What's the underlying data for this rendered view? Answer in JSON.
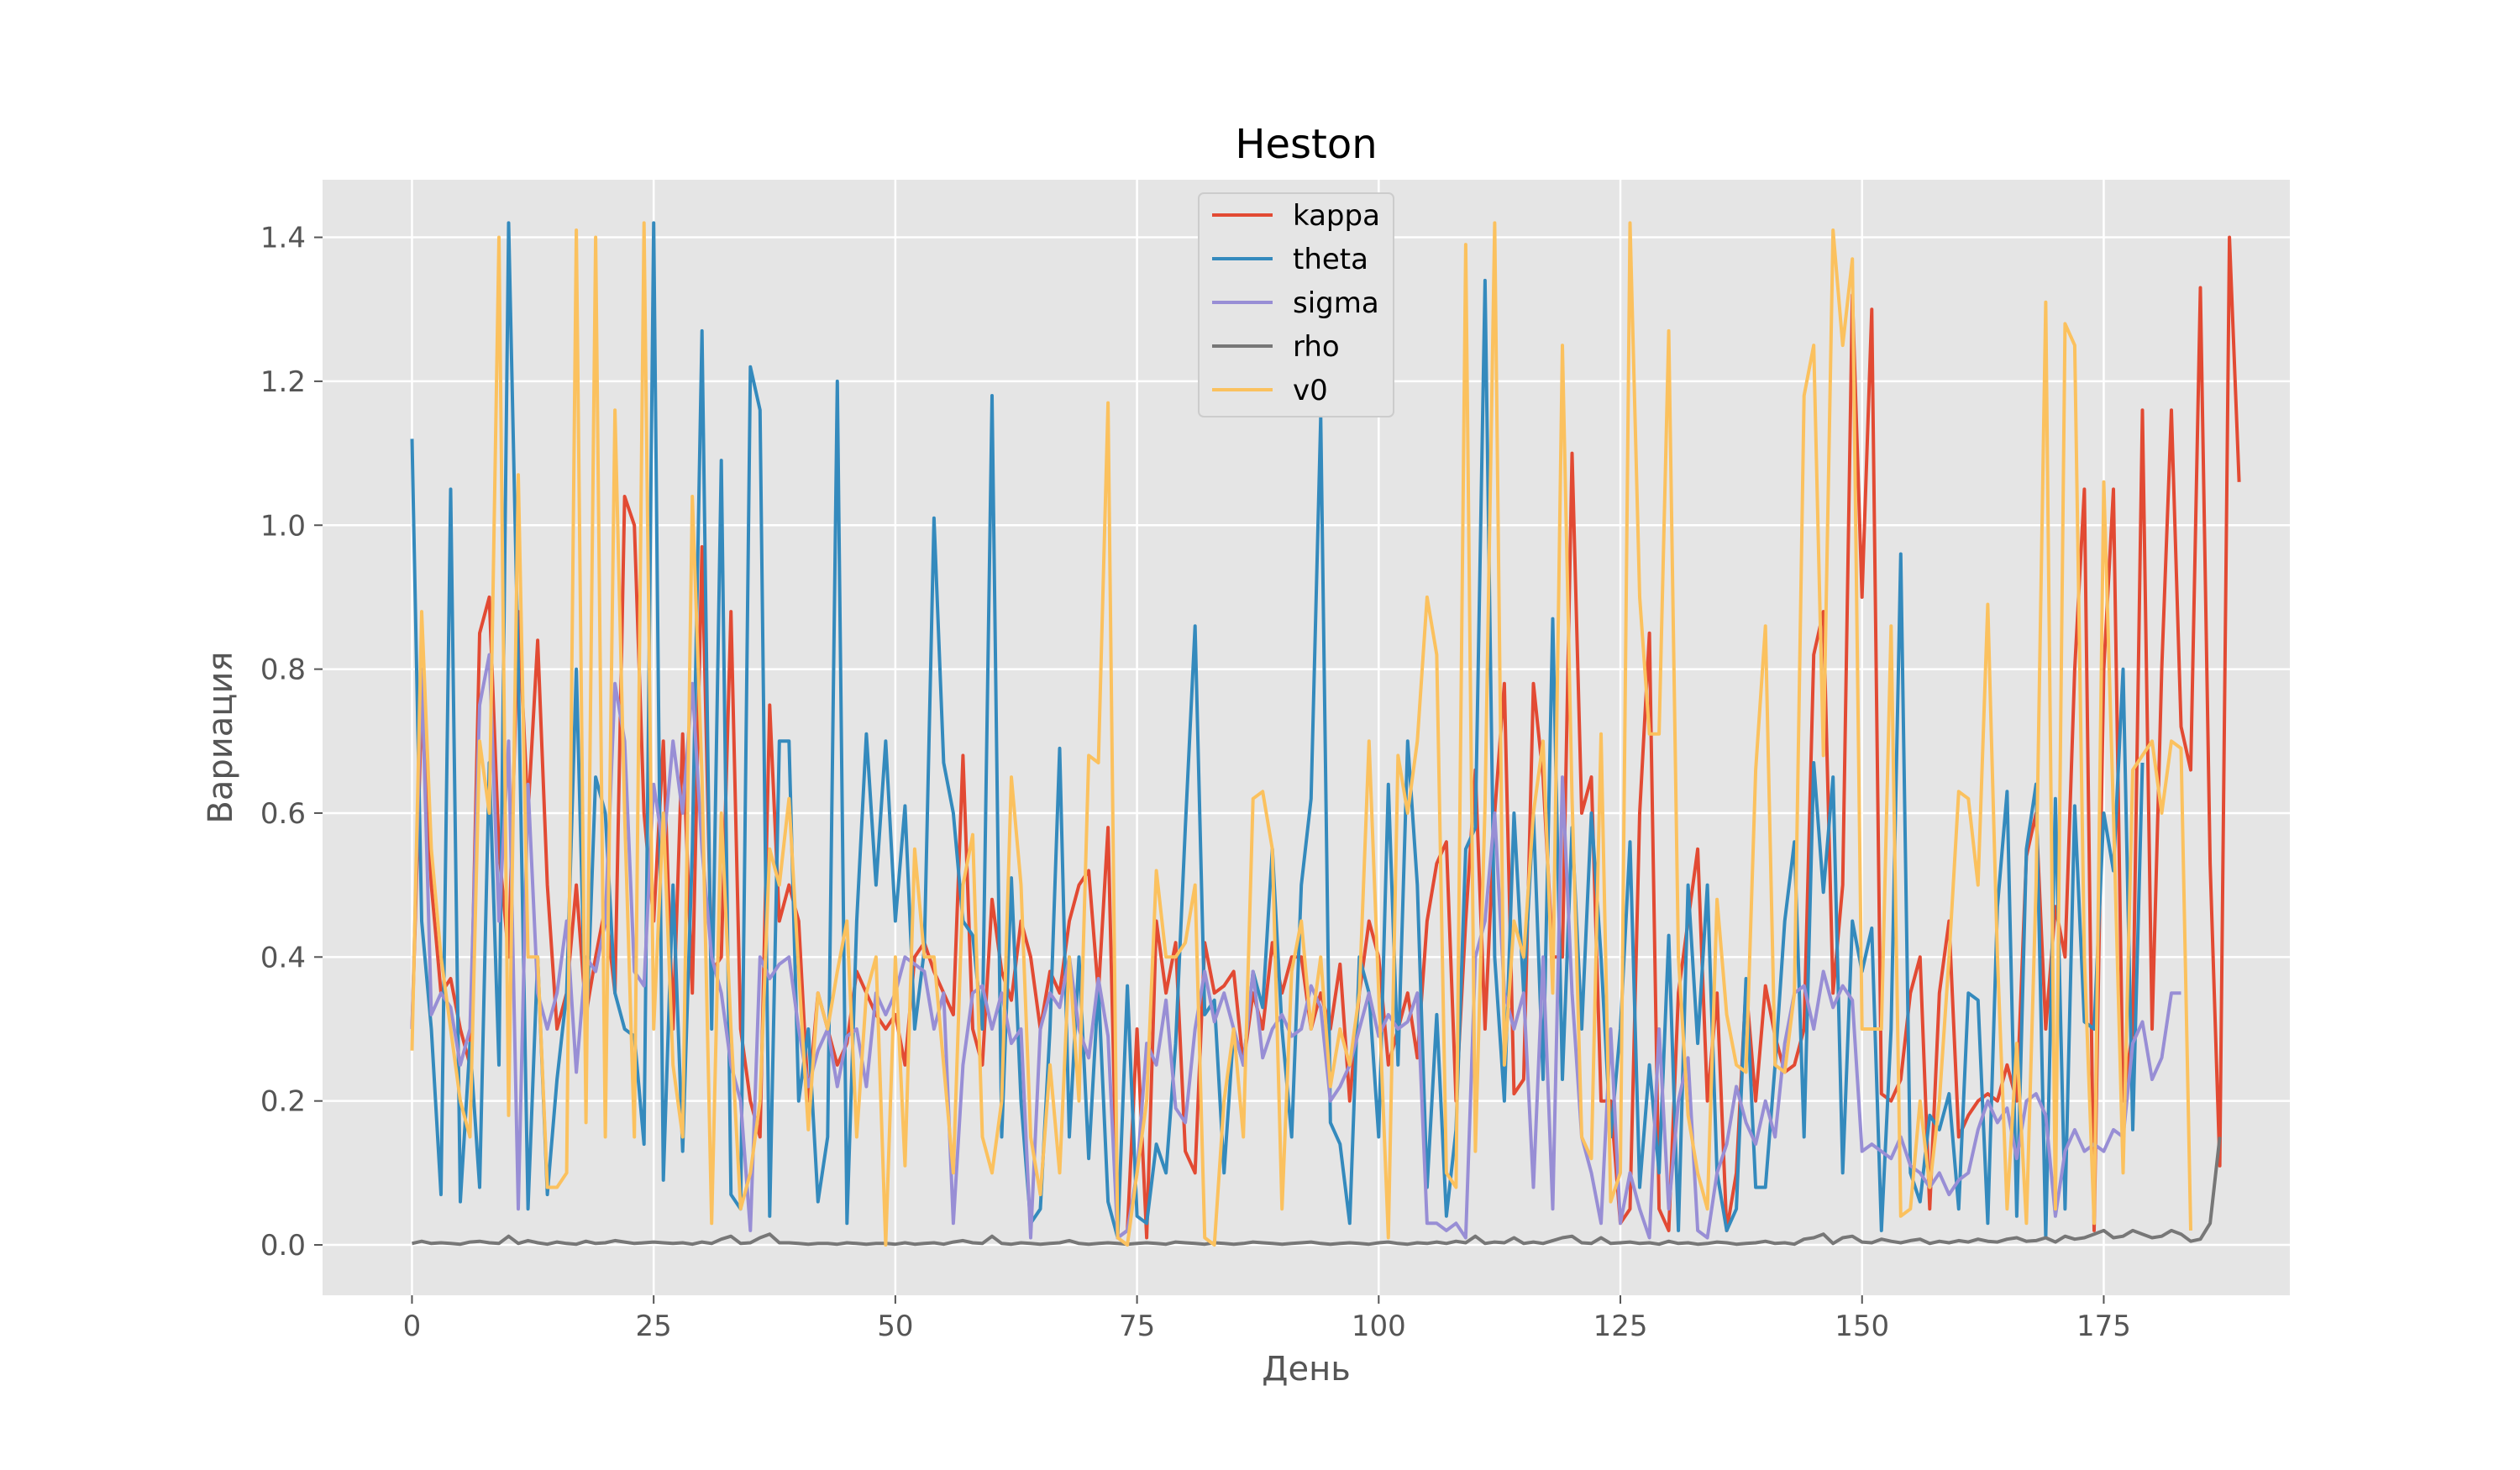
{
  "chart_data": {
    "type": "line",
    "title": "Heston",
    "xlabel": "День",
    "ylabel": "Вариация",
    "xlim": [
      -9.25,
      194.25
    ],
    "ylim": [
      -0.07,
      1.48
    ],
    "xticks": [
      0,
      25,
      50,
      75,
      100,
      125,
      150,
      175
    ],
    "yticks": [
      0.0,
      0.2,
      0.4,
      0.6,
      0.8,
      1.0,
      1.2,
      1.4
    ],
    "grid": true,
    "legend_position": "top-center",
    "colors": {
      "background": "#e5e5e5",
      "grid": "#ffffff",
      "kappa": "#e24a33",
      "theta": "#348abd",
      "sigma": "#988ed5",
      "rho": "#777777",
      "v0": "#fbc15e"
    },
    "x_start": 0,
    "series": [
      {
        "name": "kappa",
        "values": [
          0.3,
          0.75,
          0.5,
          0.35,
          0.37,
          0.3,
          0.25,
          0.85,
          0.9,
          0.55,
          0.4,
          0.88,
          0.6,
          0.84,
          0.5,
          0.3,
          0.35,
          0.5,
          0.32,
          0.4,
          0.47,
          0.35,
          1.04,
          1.0,
          0.6,
          0.45,
          0.7,
          0.3,
          0.71,
          0.35,
          0.97,
          0.38,
          0.4,
          0.88,
          0.3,
          0.2,
          0.15,
          0.75,
          0.45,
          0.5,
          0.45,
          0.2,
          0.35,
          0.3,
          0.25,
          0.28,
          0.38,
          0.35,
          0.32,
          0.3,
          0.32,
          0.25,
          0.4,
          0.42,
          0.38,
          0.35,
          0.32,
          0.68,
          0.3,
          0.25,
          0.48,
          0.38,
          0.34,
          0.45,
          0.4,
          0.3,
          0.38,
          0.35,
          0.45,
          0.5,
          0.52,
          0.35,
          0.58,
          0.01,
          0.02,
          0.3,
          0.01,
          0.45,
          0.35,
          0.42,
          0.13,
          0.1,
          0.42,
          0.35,
          0.36,
          0.38,
          0.25,
          0.35,
          0.3,
          0.42,
          0.35,
          0.4,
          0.4,
          0.3,
          0.35,
          0.3,
          0.39,
          0.2,
          0.35,
          0.45,
          0.4,
          0.25,
          0.3,
          0.35,
          0.26,
          0.45,
          0.53,
          0.56,
          0.2,
          0.45,
          0.66,
          0.3,
          0.6,
          0.78,
          0.21,
          0.23,
          0.78,
          0.65,
          0.4,
          0.4,
          1.1,
          0.6,
          0.65,
          0.2,
          0.2,
          0.03,
          0.05,
          0.6,
          0.85,
          0.05,
          0.02,
          0.35,
          0.45,
          0.55,
          0.2,
          0.35,
          0.02,
          0.1,
          0.36,
          0.2,
          0.36,
          0.29,
          0.24,
          0.25,
          0.3,
          0.82,
          0.88,
          0.35,
          0.5,
          1.32,
          0.9,
          1.3,
          0.21,
          0.2,
          0.23,
          0.35,
          0.4,
          0.05,
          0.35,
          0.45,
          0.15,
          0.18,
          0.2,
          0.21,
          0.2,
          0.25,
          0.2,
          0.54,
          0.6,
          0.3,
          0.47,
          0.4,
          0.8,
          1.05,
          0.02,
          0.8,
          1.05,
          0.2,
          0.3,
          1.16,
          0.3,
          0.8,
          1.16,
          0.72,
          0.66,
          1.33,
          0.53,
          0.11,
          1.4,
          1.06
        ]
      },
      {
        "name": "theta",
        "values": [
          1.12,
          0.45,
          0.3,
          0.07,
          1.05,
          0.06,
          0.28,
          0.08,
          0.67,
          0.25,
          1.42,
          0.8,
          0.05,
          0.4,
          0.07,
          0.23,
          0.35,
          0.8,
          0.28,
          0.65,
          0.6,
          0.35,
          0.3,
          0.29,
          0.14,
          1.42,
          0.09,
          0.5,
          0.13,
          0.55,
          1.27,
          0.3,
          1.09,
          0.07,
          0.05,
          1.22,
          1.16,
          0.04,
          0.7,
          0.7,
          0.2,
          0.3,
          0.06,
          0.15,
          1.2,
          0.03,
          0.45,
          0.71,
          0.5,
          0.7,
          0.45,
          0.61,
          0.3,
          0.41,
          1.01,
          0.67,
          0.6,
          0.45,
          0.43,
          0.3,
          1.18,
          0.15,
          0.51,
          0.2,
          0.03,
          0.05,
          0.3,
          0.69,
          0.15,
          0.4,
          0.12,
          0.36,
          0.06,
          0.01,
          0.36,
          0.04,
          0.03,
          0.14,
          0.1,
          0.28,
          0.58,
          0.86,
          0.32,
          0.34,
          0.1,
          0.3,
          0.25,
          0.38,
          0.33,
          0.55,
          0.3,
          0.15,
          0.5,
          0.62,
          1.15,
          0.17,
          0.14,
          0.03,
          0.4,
          0.35,
          0.15,
          0.64,
          0.25,
          0.7,
          0.5,
          0.08,
          0.32,
          0.04,
          0.16,
          0.55,
          0.58,
          1.34,
          0.4,
          0.2,
          0.6,
          0.35,
          0.6,
          0.23,
          0.87,
          0.23,
          0.58,
          0.3,
          0.6,
          0.4,
          0.15,
          0.3,
          0.56,
          0.08,
          0.25,
          0.1,
          0.43,
          0.02,
          0.5,
          0.28,
          0.5,
          0.1,
          0.02,
          0.05,
          0.37,
          0.08,
          0.08,
          0.25,
          0.45,
          0.56,
          0.15,
          0.67,
          0.49,
          0.65,
          0.1,
          0.45,
          0.38,
          0.44,
          0.02,
          0.3,
          0.96,
          0.1,
          0.06,
          0.18,
          0.16,
          0.21,
          0.05,
          0.35,
          0.34,
          0.03,
          0.47,
          0.63,
          0.04,
          0.55,
          0.64,
          0.01,
          0.62,
          0.05,
          0.61,
          0.31,
          0.3,
          0.6,
          0.52,
          0.8,
          0.16,
          0.67
        ]
      },
      {
        "name": "sigma",
        "values": [
          0.3,
          0.8,
          0.32,
          0.35,
          0.33,
          0.25,
          0.3,
          0.75,
          0.82,
          0.45,
          0.7,
          0.05,
          0.64,
          0.35,
          0.3,
          0.35,
          0.45,
          0.24,
          0.4,
          0.38,
          0.45,
          0.78,
          0.7,
          0.38,
          0.36,
          0.64,
          0.55,
          0.7,
          0.6,
          0.78,
          0.55,
          0.4,
          0.35,
          0.25,
          0.2,
          0.02,
          0.4,
          0.37,
          0.39,
          0.4,
          0.3,
          0.22,
          0.27,
          0.3,
          0.22,
          0.29,
          0.3,
          0.22,
          0.35,
          0.32,
          0.35,
          0.4,
          0.39,
          0.38,
          0.3,
          0.35,
          0.03,
          0.25,
          0.35,
          0.36,
          0.3,
          0.35,
          0.28,
          0.3,
          0.01,
          0.3,
          0.35,
          0.33,
          0.4,
          0.3,
          0.26,
          0.37,
          0.29,
          0.01,
          0.02,
          0.1,
          0.28,
          0.25,
          0.34,
          0.19,
          0.17,
          0.3,
          0.38,
          0.31,
          0.35,
          0.3,
          0.25,
          0.38,
          0.26,
          0.3,
          0.32,
          0.29,
          0.3,
          0.36,
          0.33,
          0.2,
          0.22,
          0.25,
          0.3,
          0.35,
          0.29,
          0.32,
          0.3,
          0.31,
          0.35,
          0.03,
          0.03,
          0.02,
          0.03,
          0.01,
          0.4,
          0.45,
          0.6,
          0.35,
          0.3,
          0.35,
          0.08,
          0.4,
          0.05,
          0.65,
          0.35,
          0.15,
          0.1,
          0.03,
          0.3,
          0.03,
          0.1,
          0.05,
          0.01,
          0.3,
          0.05,
          0.2,
          0.26,
          0.02,
          0.01,
          0.1,
          0.14,
          0.22,
          0.17,
          0.14,
          0.2,
          0.15,
          0.28,
          0.35,
          0.36,
          0.3,
          0.38,
          0.33,
          0.36,
          0.34,
          0.13,
          0.14,
          0.13,
          0.12,
          0.15,
          0.11,
          0.1,
          0.08,
          0.1,
          0.07,
          0.09,
          0.1,
          0.16,
          0.2,
          0.17,
          0.19,
          0.12,
          0.2,
          0.21,
          0.18,
          0.04,
          0.13,
          0.16,
          0.13,
          0.14,
          0.13,
          0.16,
          0.15,
          0.28,
          0.31,
          0.23,
          0.26,
          0.35,
          0.35
        ]
      },
      {
        "name": "rho",
        "values": [
          0.002,
          0.005,
          0.002,
          0.003,
          0.002,
          0.001,
          0.004,
          0.005,
          0.003,
          0.002,
          0.012,
          0.002,
          0.006,
          0.003,
          0.001,
          0.004,
          0.002,
          0.001,
          0.005,
          0.002,
          0.003,
          0.006,
          0.004,
          0.002,
          0.003,
          0.004,
          0.003,
          0.002,
          0.003,
          0.001,
          0.004,
          0.002,
          0.008,
          0.012,
          0.002,
          0.003,
          0.01,
          0.015,
          0.003,
          0.003,
          0.002,
          0.001,
          0.002,
          0.002,
          0.001,
          0.003,
          0.002,
          0.001,
          0.002,
          0.002,
          0.001,
          0.003,
          0.001,
          0.002,
          0.003,
          0.001,
          0.004,
          0.006,
          0.003,
          0.002,
          0.012,
          0.002,
          0.001,
          0.003,
          0.002,
          0.001,
          0.002,
          0.003,
          0.006,
          0.002,
          0.001,
          0.002,
          0.003,
          0.002,
          0.001,
          0.002,
          0.003,
          0.002,
          0.001,
          0.004,
          0.003,
          0.002,
          0.001,
          0.003,
          0.002,
          0.001,
          0.002,
          0.004,
          0.003,
          0.002,
          0.001,
          0.002,
          0.003,
          0.004,
          0.002,
          0.001,
          0.002,
          0.003,
          0.002,
          0.001,
          0.003,
          0.004,
          0.002,
          0.001,
          0.003,
          0.002,
          0.004,
          0.002,
          0.005,
          0.003,
          0.012,
          0.002,
          0.004,
          0.003,
          0.01,
          0.002,
          0.004,
          0.002,
          0.006,
          0.01,
          0.012,
          0.003,
          0.002,
          0.01,
          0.002,
          0.003,
          0.004,
          0.002,
          0.003,
          0.001,
          0.005,
          0.002,
          0.003,
          0.001,
          0.002,
          0.004,
          0.003,
          0.001,
          0.002,
          0.003,
          0.005,
          0.002,
          0.003,
          0.001,
          0.008,
          0.01,
          0.015,
          0.002,
          0.01,
          0.012,
          0.004,
          0.003,
          0.008,
          0.005,
          0.003,
          0.006,
          0.008,
          0.002,
          0.005,
          0.003,
          0.006,
          0.004,
          0.008,
          0.005,
          0.004,
          0.008,
          0.01,
          0.005,
          0.006,
          0.01,
          0.004,
          0.012,
          0.008,
          0.01,
          0.015,
          0.02,
          0.01,
          0.012,
          0.02,
          0.015,
          0.01,
          0.012,
          0.02,
          0.015,
          0.005,
          0.008,
          0.03,
          0.15
        ]
      },
      {
        "name": "v0",
        "values": [
          0.27,
          0.88,
          0.55,
          0.4,
          0.3,
          0.2,
          0.15,
          0.7,
          0.6,
          1.4,
          0.18,
          1.07,
          0.4,
          0.4,
          0.08,
          0.08,
          0.1,
          1.41,
          0.17,
          1.4,
          0.15,
          1.16,
          0.6,
          0.15,
          1.42,
          0.3,
          0.6,
          0.25,
          0.15,
          1.04,
          0.65,
          0.03,
          0.6,
          0.3,
          0.05,
          0.1,
          0.2,
          0.55,
          0.5,
          0.62,
          0.38,
          0.16,
          0.35,
          0.3,
          0.38,
          0.45,
          0.15,
          0.35,
          0.4,
          0.0,
          0.4,
          0.11,
          0.55,
          0.4,
          0.4,
          0.25,
          0.1,
          0.5,
          0.57,
          0.15,
          0.1,
          0.2,
          0.65,
          0.5,
          0.15,
          0.07,
          0.25,
          0.1,
          0.4,
          0.2,
          0.68,
          0.67,
          1.17,
          0.01,
          0.0,
          0.1,
          0.2,
          0.52,
          0.4,
          0.4,
          0.42,
          0.5,
          0.01,
          0.0,
          0.2,
          0.3,
          0.15,
          0.62,
          0.63,
          0.55,
          0.05,
          0.38,
          0.45,
          0.3,
          0.4,
          0.22,
          0.3,
          0.25,
          0.35,
          0.7,
          0.35,
          0.01,
          0.68,
          0.6,
          0.7,
          0.9,
          0.82,
          0.1,
          0.08,
          1.39,
          0.13,
          0.61,
          1.42,
          0.25,
          0.45,
          0.4,
          0.6,
          0.7,
          0.35,
          1.25,
          0.62,
          0.15,
          0.12,
          0.71,
          0.06,
          0.1,
          1.42,
          0.9,
          0.71,
          0.71,
          1.27,
          0.4,
          0.18,
          0.1,
          0.05,
          0.48,
          0.32,
          0.25,
          0.24,
          0.66,
          0.86,
          0.25,
          0.24,
          0.35,
          1.18,
          1.25,
          0.68,
          1.41,
          1.25,
          1.37,
          0.3,
          0.3,
          0.3,
          0.86,
          0.04,
          0.05,
          0.2,
          0.08,
          0.2,
          0.4,
          0.63,
          0.62,
          0.5,
          0.89,
          0.4,
          0.05,
          0.28,
          0.03,
          0.5,
          1.31,
          0.05,
          1.28,
          1.25,
          0.4,
          0.03,
          1.06,
          0.6,
          0.1,
          0.66,
          0.68,
          0.7,
          0.6,
          0.7,
          0.69,
          0.02
        ]
      }
    ]
  }
}
